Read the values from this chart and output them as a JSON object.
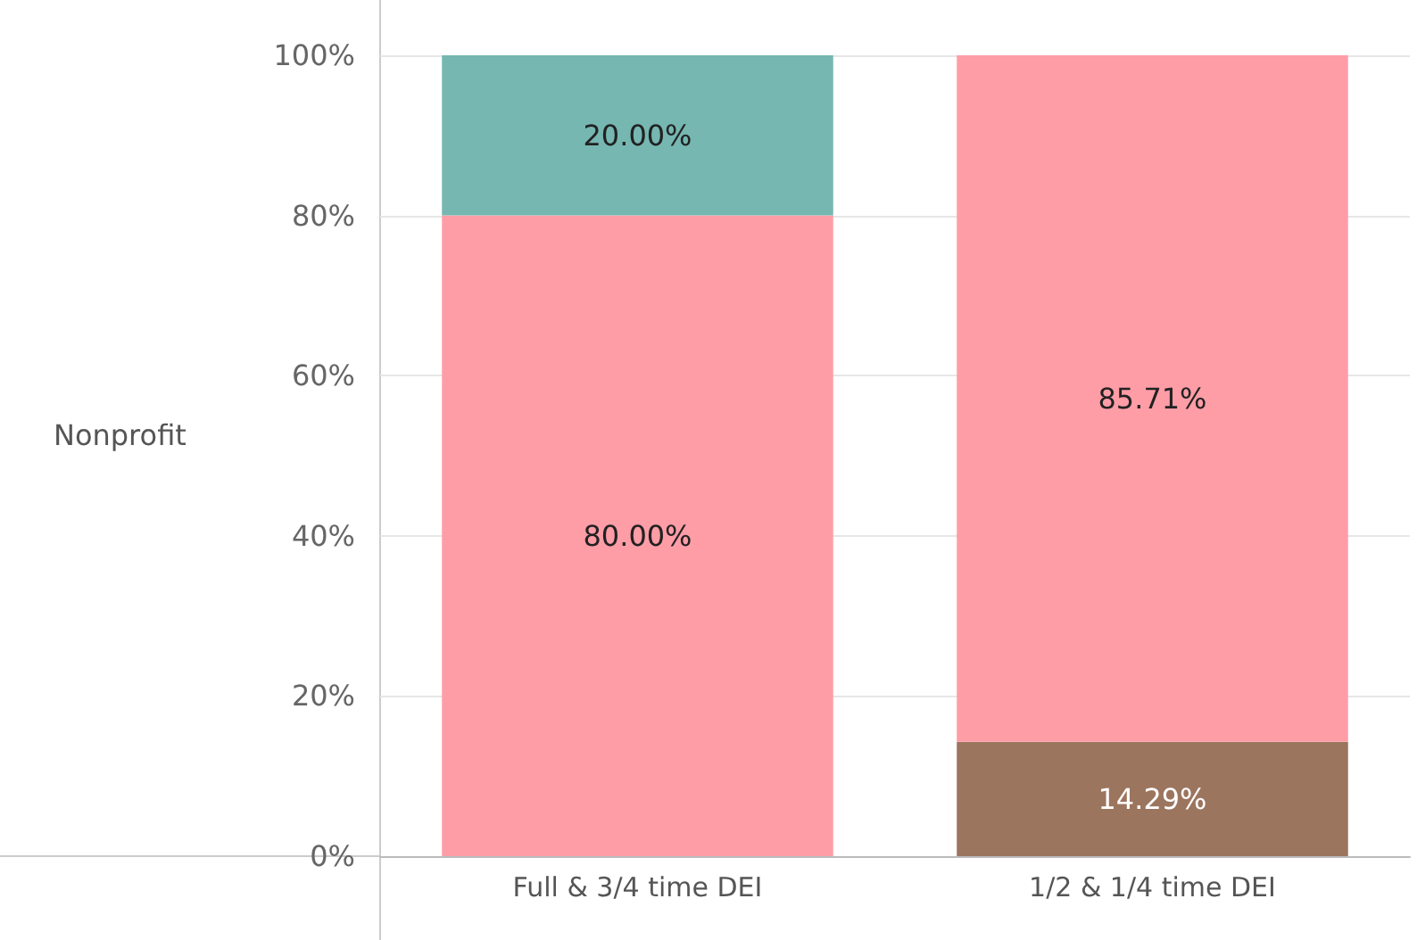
{
  "chart_data": {
    "type": "bar",
    "stacked": true,
    "ylabel": "Nonprofit",
    "categories": [
      "Full & 3/4 time DEI",
      "1/2 & 1/4 time DEI"
    ],
    "series": [
      {
        "color": "#9c755f",
        "values": [
          null,
          14.29
        ],
        "value_labels": [
          null,
          "14.29%"
        ]
      },
      {
        "color": "#ff9da7",
        "values": [
          80,
          85.71
        ],
        "value_labels": [
          "80.00%",
          "85.71%"
        ]
      },
      {
        "color": "#76b7b2",
        "values": [
          20,
          null
        ],
        "value_labels": [
          "20.00%",
          null
        ]
      }
    ],
    "ylim": [
      0,
      100
    ],
    "yticks": [
      {
        "value": 0,
        "label": "0%"
      },
      {
        "value": 20,
        "label": "20%"
      },
      {
        "value": 40,
        "label": "40%"
      },
      {
        "value": 60,
        "label": "60%"
      },
      {
        "value": 80,
        "label": "80%"
      },
      {
        "value": 100,
        "label": "100%"
      }
    ],
    "grid": "y"
  }
}
